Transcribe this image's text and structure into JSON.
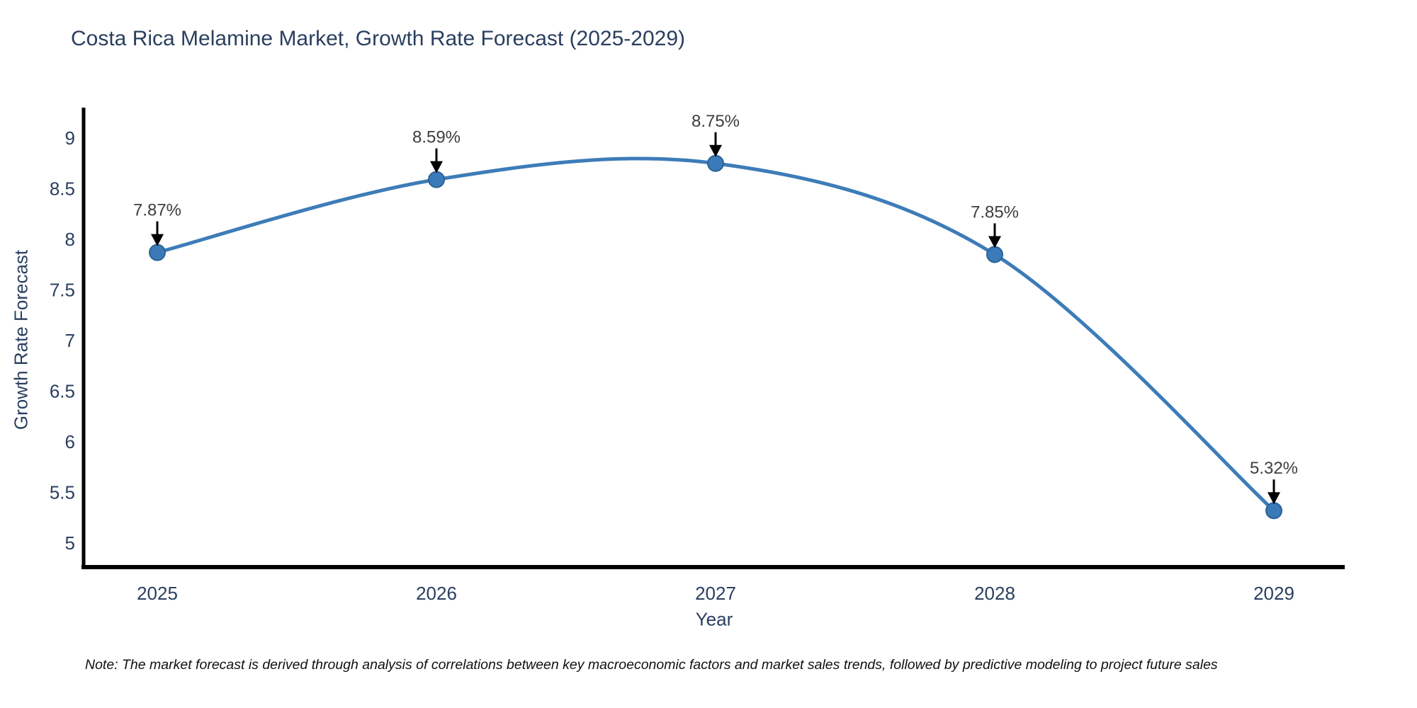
{
  "chart_data": {
    "type": "line",
    "title": "Costa Rica Melamine Market, Growth Rate Forecast (2025-2029)",
    "xlabel": "Year",
    "ylabel": "Growth Rate Forecast",
    "categories": [
      "2025",
      "2026",
      "2027",
      "2028",
      "2029"
    ],
    "values": [
      7.87,
      8.59,
      8.75,
      7.85,
      5.32
    ],
    "point_labels": [
      "7.87%",
      "8.59%",
      "8.75%",
      "7.85%",
      "5.32%"
    ],
    "y_ticks": [
      9,
      8.5,
      8,
      7.5,
      7,
      6.5,
      6,
      5.5,
      5
    ],
    "ylim": [
      4.75,
      9.3
    ],
    "grid": false,
    "legend": "none",
    "line_smoothing": "spline",
    "colors": {
      "line": "#3d7cb8",
      "marker_fill": "#3a7ab8",
      "marker_edge": "#2d6296",
      "axis": "#000000",
      "tick_text": "#2a3f5f",
      "title_text": "#2a3f5f",
      "annotation_text": "#3d3d3d",
      "annotation_arrow": "#000000"
    },
    "note": "Note: The market forecast is derived through analysis of correlations between key macroeconomic factors and market sales trends, followed by predictive modeling to project future sales"
  }
}
